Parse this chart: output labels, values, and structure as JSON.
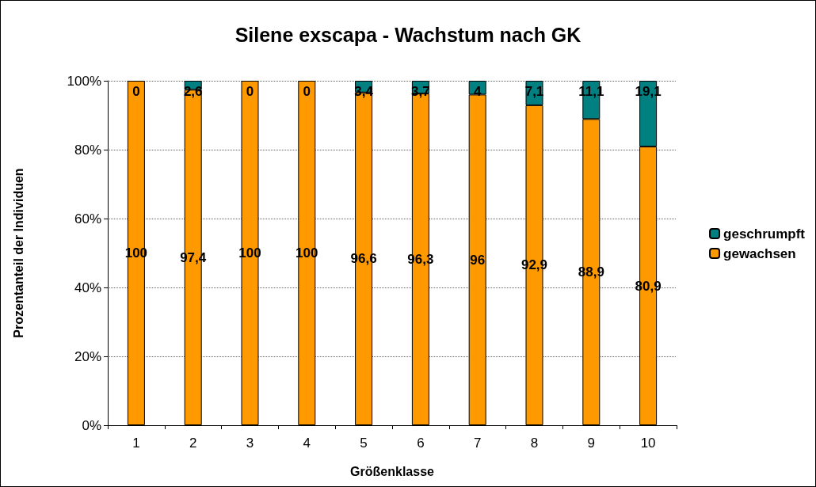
{
  "chart_data": {
    "type": "bar",
    "stacked": true,
    "title": "Silene exscapa - Wachstum nach GK",
    "xlabel": "Größenklasse",
    "ylabel": "Prozentanteil der Individuen",
    "categories": [
      "1",
      "2",
      "3",
      "4",
      "5",
      "6",
      "7",
      "8",
      "9",
      "10"
    ],
    "series": [
      {
        "name": "gewachsen",
        "color": "#ff9900",
        "values": [
          100,
          97.4,
          100,
          100,
          96.6,
          96.3,
          96,
          92.9,
          88.9,
          80.9
        ],
        "value_labels": [
          "100",
          "97,4",
          "100",
          "100",
          "96,6",
          "96,3",
          "96",
          "92,9",
          "88,9",
          "80,9"
        ]
      },
      {
        "name": "geschrumpft",
        "color": "#008080",
        "values": [
          0,
          2.6,
          0,
          0,
          3.4,
          3.7,
          4,
          7.1,
          11.1,
          19.1
        ],
        "value_labels": [
          "0",
          "2,6",
          "0",
          "0",
          "3,4",
          "3,7",
          "4",
          "7,1",
          "11,1",
          "19,1"
        ]
      }
    ],
    "ylim": [
      0,
      100
    ],
    "yticks": [
      {
        "value": 0,
        "label": "0%"
      },
      {
        "value": 20,
        "label": "20%"
      },
      {
        "value": 40,
        "label": "40%"
      },
      {
        "value": 60,
        "label": "60%"
      },
      {
        "value": 80,
        "label": "80%"
      },
      {
        "value": 100,
        "label": "100%"
      }
    ],
    "grid": "y",
    "legend": "right"
  }
}
